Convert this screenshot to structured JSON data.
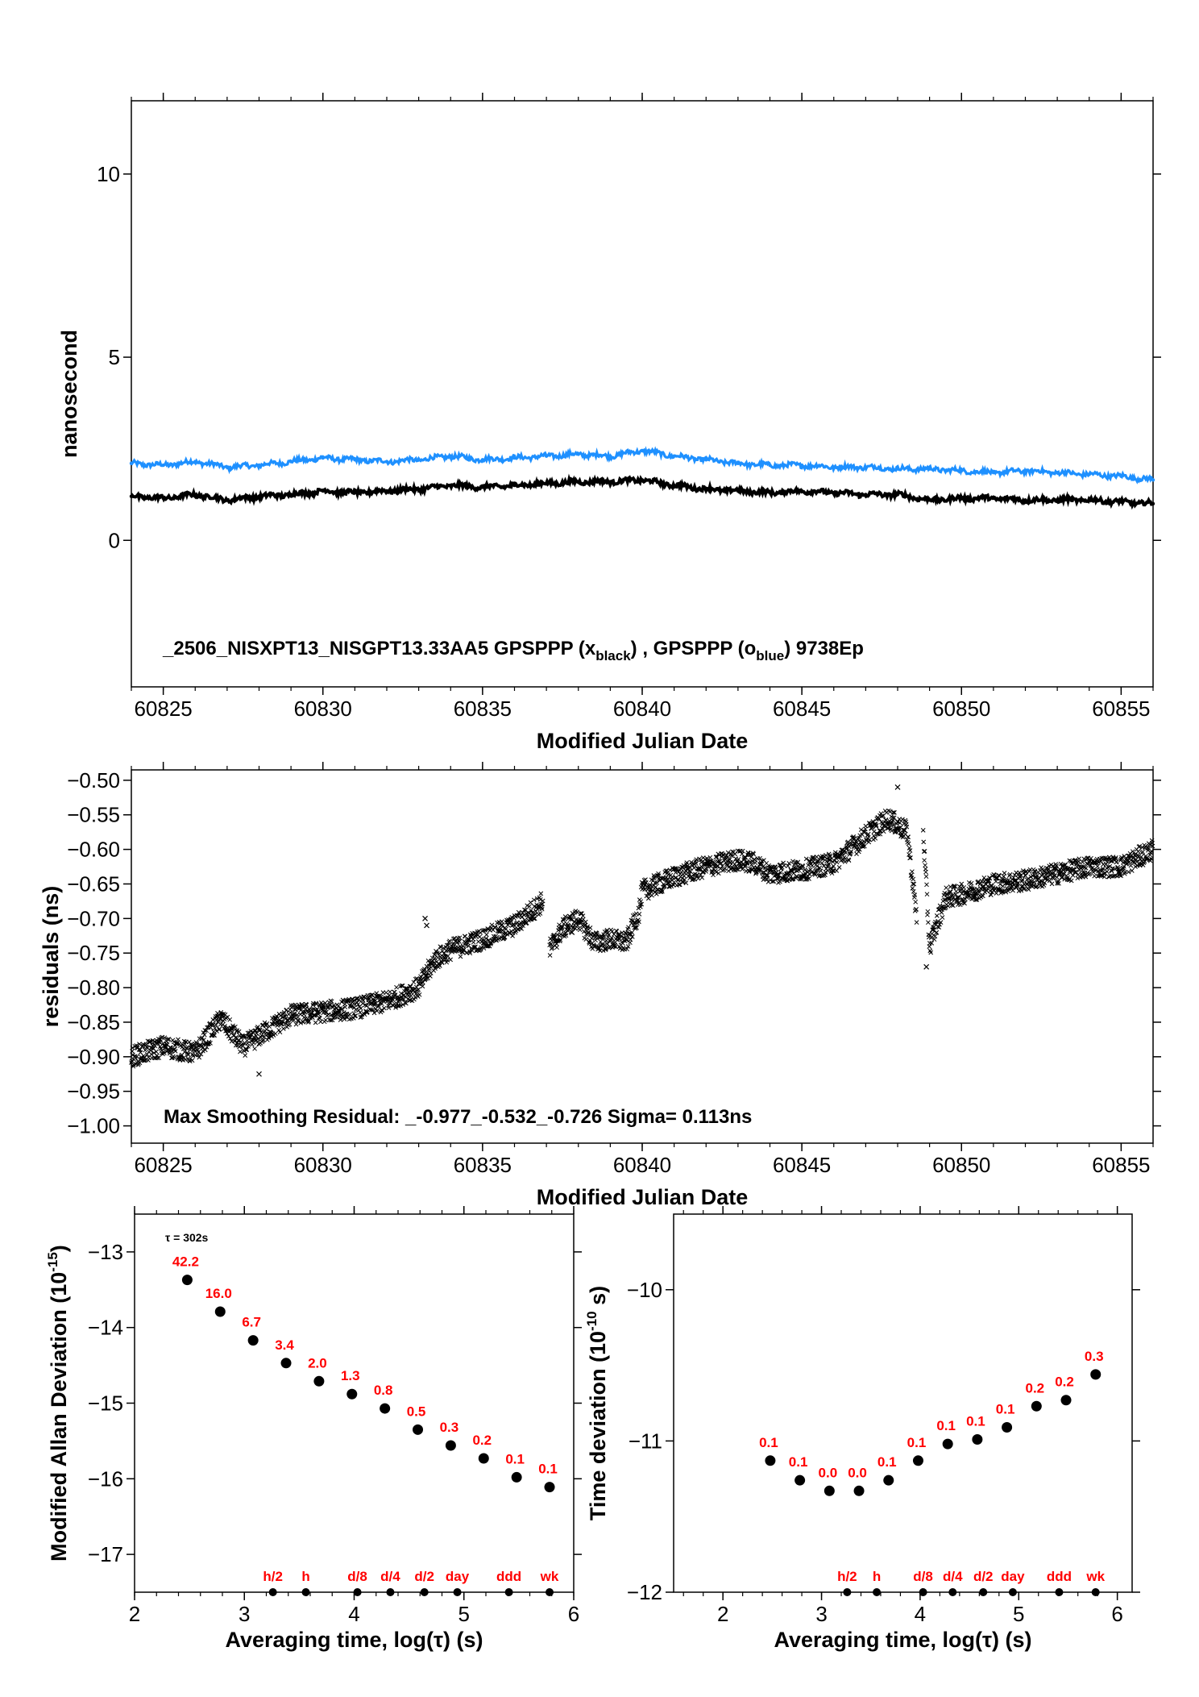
{
  "chart_data": [
    {
      "type": "line",
      "xlabel": "Modified Julian Date",
      "ylabel": "nanosecond",
      "xlim": [
        60824,
        60856
      ],
      "ylim": [
        -4,
        12
      ],
      "xticks": [
        60825,
        60830,
        60835,
        60840,
        60845,
        60850,
        60855
      ],
      "yticks": [
        0,
        5,
        10
      ],
      "annotation": {
        "prefix": "_2506_NISXPT13_NISGPT13.33AA5     GPSPPP (x",
        "sub1": "black",
        "mid": ") ,  GPSPPP (o",
        "sub2": "blue",
        "suffix": ")  9738Ep"
      },
      "series": [
        {
          "color": "#1e90ff",
          "marker": "o",
          "x": [
            60824,
            60825,
            60826,
            60827,
            60828,
            60829,
            60830,
            60831,
            60832,
            60833,
            60834,
            60835,
            60836,
            60837,
            60838,
            60839,
            60840,
            60841,
            60842,
            60843,
            60844,
            60845,
            60846,
            60847,
            60848,
            60849,
            60850,
            60851,
            60852,
            60853,
            60854,
            60855,
            60856
          ],
          "y": [
            2.1,
            2.05,
            2.15,
            2.0,
            2.05,
            2.15,
            2.25,
            2.2,
            2.15,
            2.2,
            2.3,
            2.2,
            2.25,
            2.3,
            2.35,
            2.3,
            2.45,
            2.3,
            2.2,
            2.1,
            2.05,
            2.05,
            2.0,
            2.0,
            1.95,
            1.95,
            1.9,
            1.85,
            1.9,
            1.85,
            1.8,
            1.75,
            1.65
          ]
        },
        {
          "color": "#000000",
          "marker": "x",
          "x": [
            60824,
            60825,
            60826,
            60827,
            60828,
            60829,
            60830,
            60831,
            60832,
            60833,
            60834,
            60835,
            60836,
            60837,
            60838,
            60839,
            60840,
            60841,
            60842,
            60843,
            60844,
            60845,
            60846,
            60847,
            60848,
            60849,
            60850,
            60851,
            60852,
            60853,
            60854,
            60855,
            60856
          ],
          "y": [
            1.2,
            1.15,
            1.25,
            1.1,
            1.2,
            1.25,
            1.35,
            1.3,
            1.35,
            1.4,
            1.5,
            1.45,
            1.5,
            1.55,
            1.6,
            1.6,
            1.65,
            1.5,
            1.4,
            1.35,
            1.3,
            1.35,
            1.3,
            1.25,
            1.25,
            1.1,
            1.15,
            1.15,
            1.1,
            1.1,
            1.1,
            1.05,
            1.0
          ]
        }
      ]
    },
    {
      "type": "scatter",
      "xlabel": "Modified Julian Date",
      "ylabel": "residuals (ns)",
      "xlim": [
        60824,
        60856
      ],
      "ylim": [
        -1.025,
        -0.485
      ],
      "xticks": [
        60825,
        60830,
        60835,
        60840,
        60845,
        60850,
        60855
      ],
      "yticks": [
        -1.0,
        -0.95,
        -0.9,
        -0.85,
        -0.8,
        -0.75,
        -0.7,
        -0.65,
        -0.6,
        -0.55,
        -0.5
      ],
      "ytick_labels": [
        "−1.00",
        "−0.95",
        "−0.90",
        "−0.85",
        "−0.80",
        "−0.75",
        "−0.70",
        "−0.65",
        "−0.60",
        "−0.55",
        "−0.50"
      ],
      "annotation": "Max Smoothing Residual: _-0.977_-0.532_-0.726  Sigma= 0.113ns",
      "segments": [
        {
          "x": [
            60824,
            60825,
            60826,
            60826.8,
            60827.5,
            60828,
            60829,
            60830,
            60831,
            60832,
            60833,
            60833.5,
            60834,
            60835,
            60836,
            60836.9
          ],
          "y": [
            -0.9,
            -0.885,
            -0.895,
            -0.845,
            -0.885,
            -0.87,
            -0.84,
            -0.835,
            -0.83,
            -0.82,
            -0.8,
            -0.76,
            -0.745,
            -0.73,
            -0.71,
            -0.675
          ]
        },
        {
          "x": [
            60837.1,
            60837.5,
            60838,
            60838.5,
            60839,
            60839.5,
            60839.9,
            60840,
            60841,
            60842,
            60843,
            60843.5,
            60844,
            60845,
            60846,
            60847,
            60847.7,
            60848.3,
            60848.6
          ],
          "y": [
            -0.745,
            -0.715,
            -0.7,
            -0.735,
            -0.73,
            -0.735,
            -0.69,
            -0.66,
            -0.64,
            -0.625,
            -0.615,
            -0.62,
            -0.635,
            -0.63,
            -0.62,
            -0.58,
            -0.555,
            -0.575,
            -0.7
          ]
        },
        {
          "x": [
            60848.8,
            60849,
            60849.5,
            60850,
            60851,
            60852,
            60853,
            60854,
            60855,
            60856
          ],
          "y": [
            -0.575,
            -0.74,
            -0.67,
            -0.665,
            -0.65,
            -0.645,
            -0.635,
            -0.625,
            -0.625,
            -0.6
          ]
        }
      ],
      "outliers": [
        {
          "x": 60833.2,
          "y": -0.7
        },
        {
          "x": 60833.25,
          "y": -0.71
        },
        {
          "x": 60837.8,
          "y": -0.72
        },
        {
          "x": 60848.0,
          "y": -0.51
        },
        {
          "x": 60848.9,
          "y": -0.77
        },
        {
          "x": 60828.0,
          "y": -0.925
        }
      ]
    },
    {
      "type": "scatter",
      "xlabel": "Averaging time, log(τ) (s)",
      "ylabel": "Modified Allan Deviation (10",
      "ylabel_sup": "-15",
      "ylabel_end": ")",
      "xlim": [
        2,
        6
      ],
      "ylim": [
        -17.5,
        -12.5
      ],
      "xticks": [
        2,
        3,
        4,
        5,
        6
      ],
      "yticks": [
        -17,
        -16,
        -15,
        -14,
        -13
      ],
      "ytick_labels": [
        "−17",
        "−16",
        "−15",
        "−14",
        "−13"
      ],
      "tau_note": "τ = 302s",
      "x": [
        2.48,
        2.78,
        3.08,
        3.38,
        3.68,
        3.98,
        4.28,
        4.58,
        4.88,
        5.18,
        5.48,
        5.78
      ],
      "y": [
        -13.37,
        -13.79,
        -14.17,
        -14.47,
        -14.71,
        -14.88,
        -15.07,
        -15.35,
        -15.56,
        -15.73,
        -15.98,
        -16.11
      ],
      "point_labels": [
        "42.2",
        "16.0",
        "6.7",
        "3.4",
        "2.0",
        "1.3",
        "0.8",
        "0.5",
        "0.3",
        "0.2",
        "0.1",
        "0.1"
      ],
      "time_markers": [
        {
          "x": 3.26,
          "label": "h/2"
        },
        {
          "x": 3.56,
          "label": "h"
        },
        {
          "x": 4.03,
          "label": "d/8"
        },
        {
          "x": 4.33,
          "label": "d/4"
        },
        {
          "x": 4.64,
          "label": "d/2"
        },
        {
          "x": 4.94,
          "label": "day"
        },
        {
          "x": 5.41,
          "label": "ddd"
        },
        {
          "x": 5.78,
          "label": "wk"
        }
      ]
    },
    {
      "type": "scatter",
      "xlabel": "Averaging time, log(τ) (s)",
      "ylabel": "Time deviation (10",
      "ylabel_sup": "-10",
      "ylabel_end": " s)",
      "xlim": [
        1.5,
        6.15
      ],
      "ylim": [
        -12.0,
        -9.5
      ],
      "xticks": [
        2,
        3,
        4,
        5,
        6
      ],
      "yticks": [
        -12,
        -11,
        -10
      ],
      "ytick_labels": [
        "−12",
        "−11",
        "−10"
      ],
      "x": [
        2.48,
        2.78,
        3.08,
        3.38,
        3.68,
        3.98,
        4.28,
        4.58,
        4.88,
        5.18,
        5.48,
        5.78
      ],
      "y": [
        -11.13,
        -11.26,
        -11.33,
        -11.33,
        -11.26,
        -11.13,
        -11.02,
        -10.99,
        -10.91,
        -10.77,
        -10.73,
        -10.56
      ],
      "point_labels": [
        "0.1",
        "0.1",
        "0.0",
        "0.0",
        "0.1",
        "0.1",
        "0.1",
        "0.1",
        "0.1",
        "0.2",
        "0.2",
        "0.3"
      ],
      "time_markers": [
        {
          "x": 3.26,
          "label": "h/2"
        },
        {
          "x": 3.56,
          "label": "h"
        },
        {
          "x": 4.03,
          "label": "d/8"
        },
        {
          "x": 4.33,
          "label": "d/4"
        },
        {
          "x": 4.64,
          "label": "d/2"
        },
        {
          "x": 4.94,
          "label": "day"
        },
        {
          "x": 5.41,
          "label": "ddd"
        },
        {
          "x": 5.78,
          "label": "wk"
        }
      ]
    }
  ]
}
